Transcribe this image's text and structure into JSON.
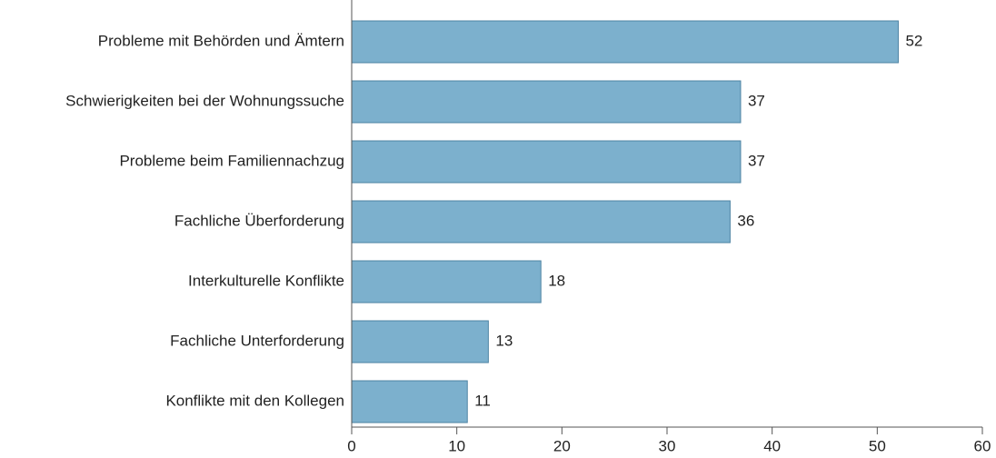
{
  "chart_data": {
    "type": "bar",
    "orientation": "horizontal",
    "categories": [
      "Probleme mit Behörden und Ämtern",
      "Schwierigkeiten bei der Wohnungssuche",
      "Probleme beim Familiennachzug",
      "Fachliche Überforderung",
      "Interkulturelle Konflikte",
      "Fachliche Unterforderung",
      "Konflikte mit den Kollegen"
    ],
    "values": [
      52,
      37,
      37,
      36,
      18,
      13,
      11
    ],
    "color": "#7cb0cd",
    "xlim": [
      0,
      60
    ],
    "xticks": [
      0,
      10,
      20,
      30,
      40,
      50,
      60
    ]
  }
}
